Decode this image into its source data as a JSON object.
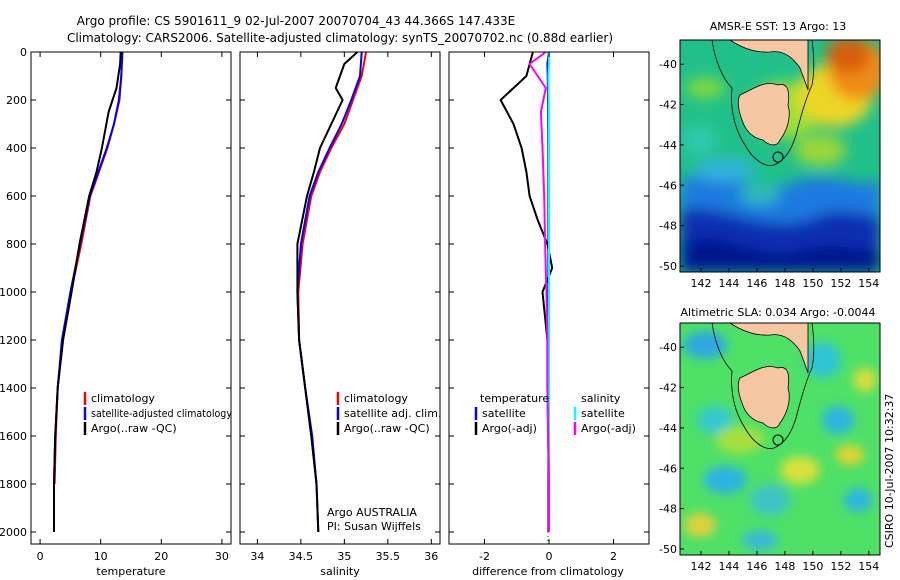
{
  "title": {
    "line1": "Argo profile: CS 5901611_9 02-Jul-2007 20070704_43 44.366S 147.433E",
    "line2": "Climatology: CARS2006. Satellite-adjusted climatology: synTS_20070702.nc (0.88d earlier)"
  },
  "depth_axis": {
    "ylim": [
      0,
      2050
    ],
    "ticks": [
      0,
      200,
      400,
      600,
      800,
      1000,
      1200,
      1400,
      1600,
      1800,
      2000
    ],
    "reversed": true
  },
  "colors": {
    "climatology": "#ff0000",
    "satellite": "#0000ff",
    "argo": "#000000",
    "satellite_salinity": "#00ffff",
    "argo_salinity_diff": "#ff00ff",
    "map_land": "#f5c7a2",
    "map_marker": "#000000"
  },
  "chart_data": [
    {
      "type": "line",
      "xlabel": "temperature",
      "xlim": [
        -1.5,
        31.5
      ],
      "xticks": [
        0,
        10,
        20,
        30
      ],
      "legend_placement": "lower-center",
      "series": [
        {
          "name": "climatology",
          "color": "#ff0000",
          "x": [
            13.5,
            13.4,
            13.1,
            12.2,
            11.1,
            9.7,
            8.3,
            6.8,
            5.1,
            3.7,
            2.9,
            2.6,
            2.4
          ],
          "y": [
            0,
            100,
            200,
            300,
            400,
            500,
            600,
            800,
            1000,
            1200,
            1400,
            1600,
            1800
          ]
        },
        {
          "name": "satellite-adjusted climatology",
          "color": "#0000ff",
          "x": [
            13.6,
            13.4,
            13.0,
            12.2,
            11.0,
            9.6,
            8.2,
            6.6,
            5.0,
            3.6,
            2.9,
            2.5,
            2.3,
            2.3
          ],
          "y": [
            0,
            100,
            200,
            300,
            400,
            500,
            600,
            800,
            1000,
            1200,
            1400,
            1600,
            1800,
            2000
          ]
        },
        {
          "name": "Argo(..raw -QC)",
          "color": "#000000",
          "x": [
            13.3,
            13.2,
            12.6,
            11.3,
            10.2,
            9.3,
            8.1,
            6.5,
            5.2,
            3.8,
            2.9,
            2.5,
            2.3,
            2.3
          ],
          "y": [
            0,
            50,
            150,
            250,
            400,
            500,
            600,
            800,
            1000,
            1200,
            1400,
            1600,
            1800,
            2000
          ]
        }
      ]
    },
    {
      "type": "line",
      "xlabel": "salinity",
      "xlim": [
        33.8,
        36.1
      ],
      "xticks": [
        34,
        34.5,
        35,
        35.5,
        36
      ],
      "legend_placement": "lower-center",
      "annotation": {
        "line1": "Argo AUSTRALIA",
        "line2": "PI: Susan Wijffels"
      },
      "series": [
        {
          "name": "climatology",
          "color": "#ff0000",
          "x": [
            35.25,
            35.2,
            35.1,
            35.0,
            34.85,
            34.72,
            34.62,
            34.52,
            34.47,
            34.48,
            34.55,
            34.62,
            34.68
          ],
          "y": [
            0,
            100,
            200,
            300,
            400,
            500,
            600,
            800,
            1000,
            1200,
            1400,
            1600,
            1800
          ]
        },
        {
          "name": "satellite adj. clim.",
          "color": "#0000ff",
          "x": [
            35.2,
            35.18,
            35.08,
            34.97,
            34.83,
            34.7,
            34.6,
            34.5,
            34.46,
            34.48,
            34.55,
            34.63,
            34.68,
            34.7
          ],
          "y": [
            0,
            100,
            200,
            300,
            400,
            500,
            600,
            800,
            1000,
            1200,
            1400,
            1600,
            1800,
            2000
          ]
        },
        {
          "name": "Argo(..raw -QC)",
          "color": "#000000",
          "x": [
            35.15,
            35.0,
            34.9,
            34.98,
            34.72,
            34.65,
            34.57,
            34.46,
            34.46,
            34.48,
            34.55,
            34.62,
            34.68,
            34.7
          ],
          "y": [
            0,
            50,
            150,
            200,
            400,
            500,
            600,
            800,
            1000,
            1200,
            1400,
            1600,
            1800,
            2000
          ]
        }
      ]
    },
    {
      "type": "line",
      "xlabel": "difference from climatology",
      "xlim": [
        -3.1,
        3.1
      ],
      "xticks": [
        -2,
        0,
        2
      ],
      "legend_placement": "lower-center",
      "legend_titles": {
        "left": "temperature",
        "right": "salinity"
      },
      "series": [
        {
          "name": "satellite",
          "group": "temperature",
          "color": "#0000ff",
          "x": [
            0.0,
            -0.05,
            -0.04,
            -0.03,
            -0.02,
            -0.02,
            -0.02,
            -0.02,
            -0.02,
            -0.02,
            -0.02
          ],
          "y": [
            0,
            50,
            100,
            200,
            400,
            600,
            800,
            1000,
            1400,
            1800,
            2000
          ]
        },
        {
          "name": "Argo(-adj)",
          "group": "temperature",
          "color": "#000000",
          "x": [
            -0.5,
            -0.7,
            -1.5,
            -1.1,
            -0.85,
            -0.7,
            -0.6,
            -0.35,
            -0.05,
            0.1,
            -0.2,
            -0.05,
            -0.05,
            0.0,
            0.0
          ],
          "y": [
            0,
            100,
            200,
            300,
            400,
            500,
            600,
            700,
            800,
            900,
            1000,
            1200,
            1400,
            1800,
            2000
          ]
        },
        {
          "name": "satellite",
          "group": "salinity",
          "color": "#00ffff",
          "x": [
            0.0,
            0.0,
            -0.02,
            -0.01,
            0.0,
            0.0,
            0.0,
            0.0,
            0.0,
            0.0,
            0.0
          ],
          "y": [
            0,
            50,
            100,
            200,
            400,
            600,
            800,
            1000,
            1400,
            1800,
            2000
          ]
        },
        {
          "name": "Argo(-adj)",
          "group": "salinity",
          "color": "#ff00ff",
          "x": [
            -0.1,
            -0.6,
            -0.1,
            -0.25,
            -0.2,
            -0.15,
            -0.12,
            -0.08,
            -0.05,
            -0.05,
            0.0,
            0.0
          ],
          "y": [
            0,
            50,
            150,
            250,
            400,
            600,
            800,
            1000,
            1200,
            1400,
            1800,
            2000
          ]
        }
      ]
    },
    {
      "type": "heatmap",
      "title": "AMSR-E SST: 13 Argo: 13",
      "xlim": [
        140.5,
        154.8
      ],
      "ylim": [
        -50.3,
        -38.8
      ],
      "xticks": [
        142,
        144,
        146,
        148,
        150,
        152,
        154
      ],
      "yticks": [
        -40,
        -42,
        -44,
        -46,
        -48,
        -50
      ],
      "marker": {
        "lon": 147.433,
        "lat": -44.366
      }
    },
    {
      "type": "heatmap",
      "title": "Altimetric SLA: 0.034 Argo: -0.0044",
      "xlim": [
        140.5,
        154.8
      ],
      "ylim": [
        -50.3,
        -38.8
      ],
      "xticks": [
        142,
        144,
        146,
        148,
        150,
        152,
        154
      ],
      "yticks": [
        -40,
        -42,
        -44,
        -46,
        -48,
        -50
      ],
      "marker": {
        "lon": 147.433,
        "lat": -44.366
      }
    }
  ],
  "footer": {
    "timestamp": "CSIRO 10-Jul-2007 10:32:37"
  }
}
